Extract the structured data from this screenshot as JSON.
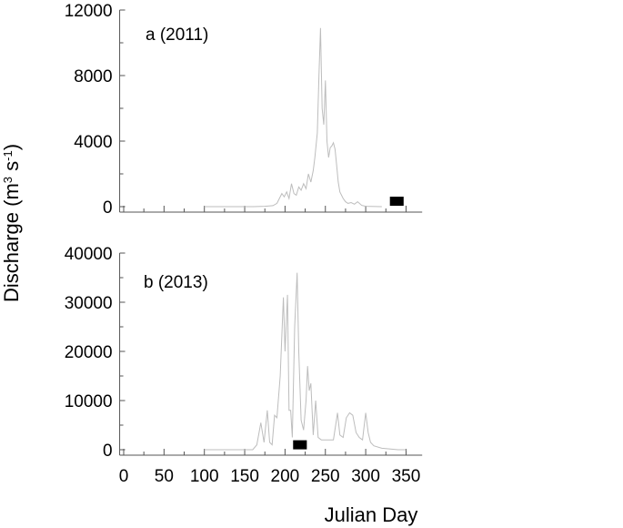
{
  "chart_data": {
    "type": "line",
    "ylabel": "Discharge (m³ s⁻¹)",
    "xlabel": "Julian Day",
    "xlim": [
      -5,
      370
    ],
    "xticks": [
      0,
      50,
      100,
      150,
      200,
      250,
      300,
      350
    ],
    "xtick_labels": [
      "0",
      "50",
      "100",
      "150",
      "200",
      "250",
      "300",
      "350"
    ],
    "panels": [
      {
        "label": "a (2011)",
        "ylim": [
          0,
          12000
        ],
        "yticks": [
          0,
          4000,
          8000,
          12000
        ],
        "ytick_labels": [
          "0",
          "4000",
          "8000",
          "12000"
        ],
        "series": {
          "x": [
            100,
            160,
            175,
            185,
            190,
            193,
            196,
            199,
            202,
            205,
            208,
            211,
            214,
            217,
            220,
            223,
            226,
            229,
            232,
            235,
            237,
            240,
            242,
            244,
            246,
            248,
            250,
            252,
            254,
            256,
            258,
            260,
            262,
            264,
            266,
            268,
            270,
            272,
            275,
            278,
            282,
            286,
            290,
            295,
            300,
            320
          ],
          "y": [
            0,
            0,
            20,
            60,
            200,
            500,
            800,
            600,
            900,
            500,
            1400,
            800,
            700,
            1200,
            1000,
            1400,
            1100,
            2000,
            1500,
            2200,
            3000,
            4500,
            8000,
            10900,
            6000,
            5000,
            7700,
            4000,
            3000,
            3600,
            3700,
            3900,
            3500,
            2500,
            1500,
            900,
            700,
            500,
            300,
            200,
            250,
            150,
            300,
            80,
            20,
            0
          ]
        },
        "marker": {
          "x_start": 330,
          "x_end": 347,
          "y_center": 330
        }
      },
      {
        "label": "b (2013)",
        "ylim": [
          0,
          40000
        ],
        "yticks": [
          0,
          10000,
          20000,
          30000,
          40000
        ],
        "ytick_labels": [
          "0",
          "10000",
          "20000",
          "30000",
          "40000"
        ],
        "series": {
          "x": [
            100,
            160,
            165,
            170,
            174,
            178,
            181,
            184,
            187,
            190,
            194,
            198,
            200,
            203,
            205,
            207,
            209,
            212,
            215,
            217,
            220,
            223,
            226,
            228,
            230,
            232,
            235,
            238,
            241,
            245,
            250,
            255,
            260,
            265,
            268,
            272,
            276,
            280,
            284,
            288,
            292,
            296,
            300,
            303,
            306,
            310,
            320,
            340,
            350
          ],
          "y": [
            0,
            0,
            1000,
            5500,
            1500,
            8000,
            1500,
            1000,
            7000,
            6500,
            15000,
            31000,
            20000,
            31500,
            8000,
            8000,
            2500,
            25000,
            36000,
            20000,
            6000,
            4000,
            10000,
            17000,
            12000,
            13500,
            3000,
            10000,
            2500,
            2000,
            2000,
            2000,
            2000,
            7500,
            3000,
            2500,
            6500,
            7500,
            7000,
            3500,
            2500,
            2000,
            7500,
            3500,
            1500,
            800,
            300,
            0,
            0
          ]
        },
        "marker": {
          "x_start": 210,
          "x_end": 227,
          "y_center": 1000
        }
      }
    ],
    "grid": false,
    "legend": "none"
  }
}
